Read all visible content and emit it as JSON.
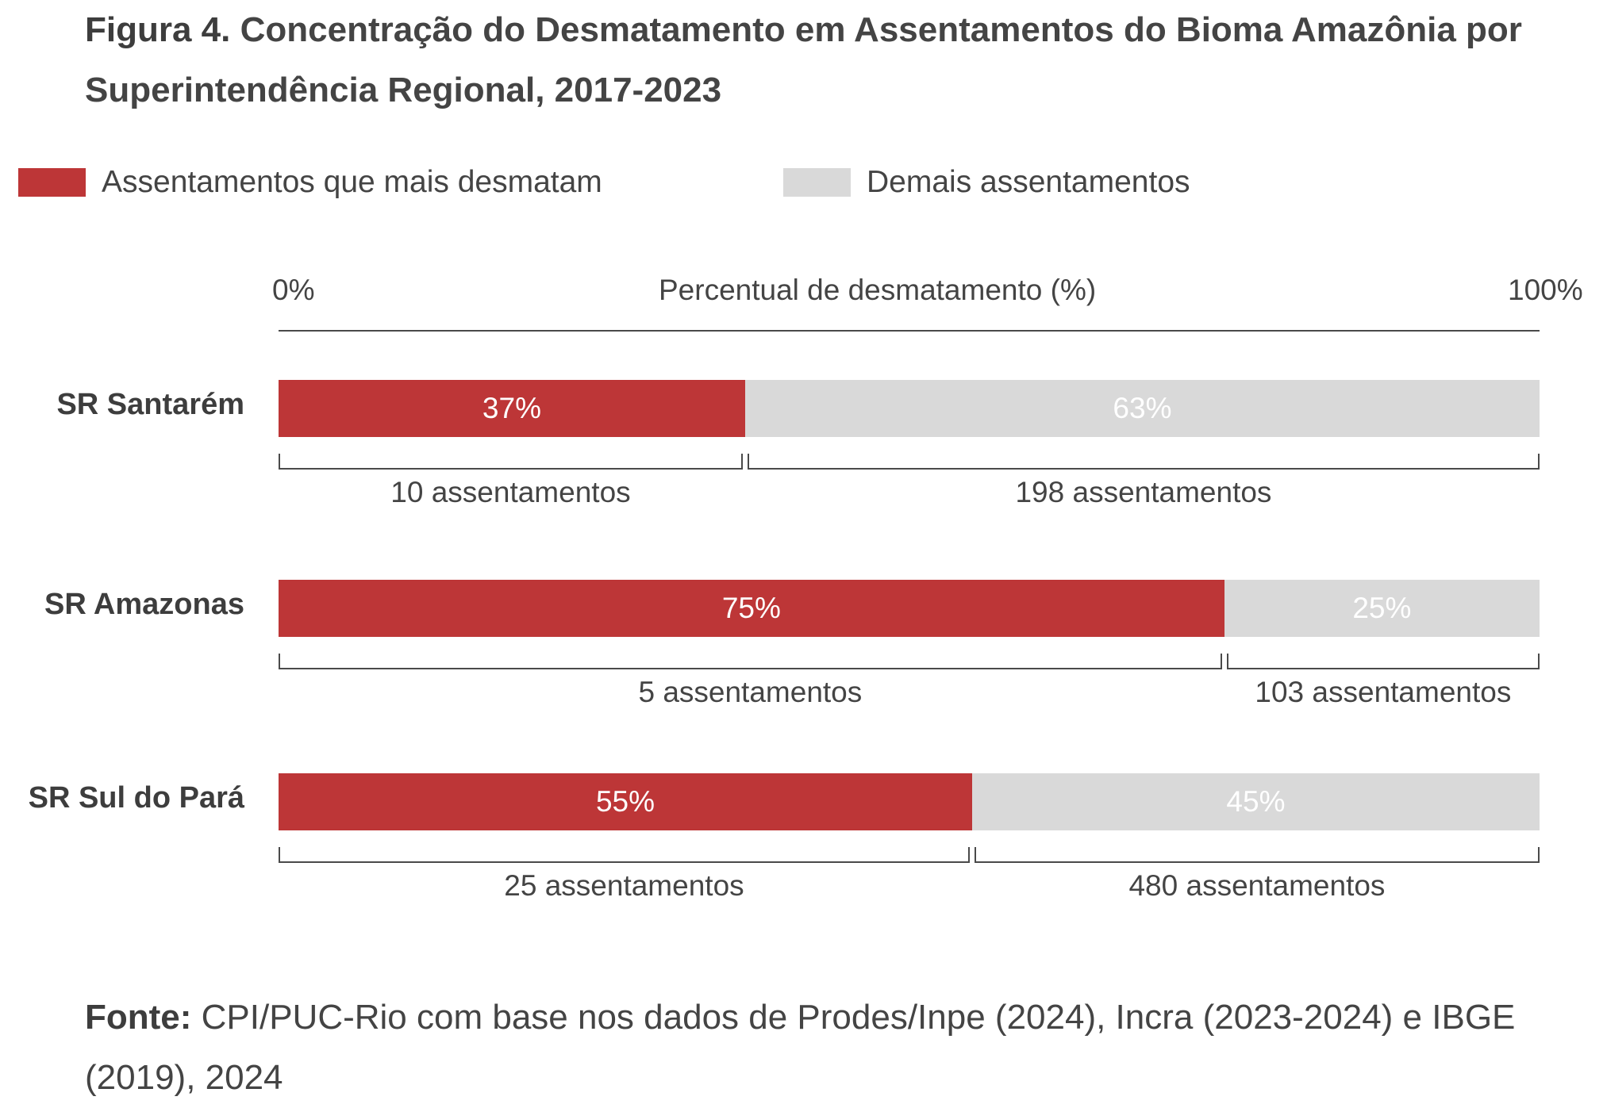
{
  "title": {
    "prefix": "Figura 4.",
    "text": " Concentração do Desmatamento em Assentamentos do Bioma Amazônia por Superintendência Regional, 2017-2023"
  },
  "legend": [
    {
      "label": "Assentamentos que mais desmatam",
      "color": "#bd3637"
    },
    {
      "label": "Demais assentamentos",
      "color": "#d9d9d9"
    }
  ],
  "axis": {
    "min_label": "0%",
    "title": "Percentual de desmatamento (%)",
    "max_label": "100%"
  },
  "source": {
    "prefix": "Fonte:",
    "text": " CPI/PUC-Rio com base nos dados de Prodes/Inpe (2024), Incra (2023-2024) e IBGE (2019), 2024"
  },
  "chart_data": {
    "type": "bar",
    "orientation": "horizontal",
    "stacked": true,
    "xlabel": "Percentual de desmatamento (%)",
    "xlim": [
      0,
      100
    ],
    "categories": [
      "SR Santarém",
      "SR Amazonas",
      "SR Sul do Pará"
    ],
    "series": [
      {
        "name": "Assentamentos que mais desmatam",
        "values": [
          37,
          75,
          55
        ],
        "value_labels": [
          "37%",
          "75%",
          "55%"
        ],
        "counts": [
          "10 assentamentos",
          "5 assentamentos",
          "25 assentamentos"
        ]
      },
      {
        "name": "Demais assentamentos",
        "values": [
          63,
          25,
          45
        ],
        "value_labels": [
          "63%",
          "25%",
          "45%"
        ],
        "counts": [
          "198 assentamentos",
          "103 assentamentos",
          "480 assentamentos"
        ]
      }
    ]
  }
}
